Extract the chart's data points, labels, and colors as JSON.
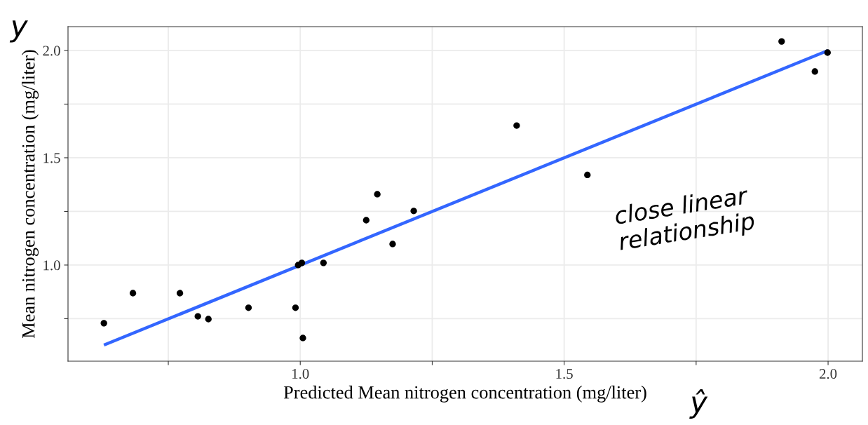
{
  "chart_data": {
    "type": "scatter",
    "xlabel": "Predicted Mean nitrogen concentration (mg/liter)",
    "ylabel": "Mean nitrogen concentration (mg/liter)",
    "x": [
      0.628,
      0.683,
      0.772,
      0.806,
      0.826,
      0.902,
      0.991,
      0.996,
      1.003,
      1.005,
      1.044,
      1.125,
      1.146,
      1.175,
      1.215,
      1.41,
      1.544,
      1.912,
      1.975,
      1.999
    ],
    "series": [
      {
        "color": "#000000",
        "marker": "circle",
        "values": [
          0.729,
          0.869,
          0.869,
          0.761,
          0.748,
          0.801,
          0.801,
          1.0,
          1.01,
          0.66,
          1.01,
          1.209,
          1.33,
          1.098,
          1.252,
          1.65,
          1.42,
          2.042,
          1.902,
          1.99
        ]
      },
      {
        "type": "line",
        "color": "#3366ff",
        "x": [
          0.628,
          2.0
        ],
        "values": [
          0.627,
          2.0
        ]
      }
    ],
    "xlim": [
      0.56,
      2.065
    ],
    "ylim": [
      0.552,
      2.111
    ],
    "xticks": [
      {
        "value": 0.75,
        "label": null
      },
      {
        "value": 1,
        "label": "1.0"
      },
      {
        "value": 1.25,
        "label": null
      },
      {
        "value": 1.5,
        "label": "1.5"
      },
      {
        "value": 1.75,
        "label": null
      },
      {
        "value": 2,
        "label": "2.0"
      }
    ],
    "yticks": [
      {
        "value": 0.75,
        "label": null
      },
      {
        "value": 1,
        "label": "1.0"
      },
      {
        "value": 1.25,
        "label": null
      },
      {
        "value": 1.5,
        "label": "1.5"
      },
      {
        "value": 1.75,
        "label": null
      },
      {
        "value": 2,
        "label": "2.0"
      }
    ],
    "grid": true,
    "line_style": "solid",
    "annotations": [
      "y",
      "ŷ",
      "close linear relationship"
    ]
  }
}
